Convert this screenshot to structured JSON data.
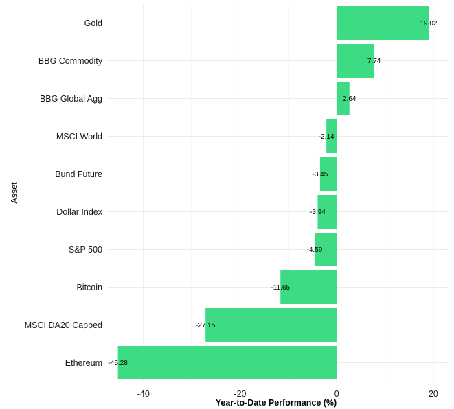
{
  "chart_data": {
    "type": "bar",
    "orientation": "horizontal",
    "categories": [
      "Gold",
      "BBG Commodity",
      "BBG Global Agg",
      "MSCI World",
      "Bund Future",
      "Dollar Index",
      "S&P 500",
      "Bitcoin",
      "MSCI DA20 Capped",
      "Ethereum"
    ],
    "values": [
      19.02,
      7.74,
      2.64,
      -2.14,
      -3.45,
      -3.94,
      -4.59,
      -11.65,
      -27.15,
      -45.28
    ],
    "data_labels": [
      "19.02",
      "7.74",
      "2.64",
      "-2.14",
      "-3.45",
      "-3.94",
      "-4.59",
      "-11.65",
      "-27.15",
      "-45.28"
    ],
    "xlabel": "Year-to-Date Performance (%)",
    "ylabel": "Asset",
    "xlim": [
      -47.5,
      23
    ],
    "x_ticks": [
      -40,
      -20,
      0,
      20
    ],
    "x_tick_labels": [
      "-40",
      "-20",
      "0",
      "20"
    ],
    "grid": true,
    "bar_color": "#3ddc84"
  }
}
